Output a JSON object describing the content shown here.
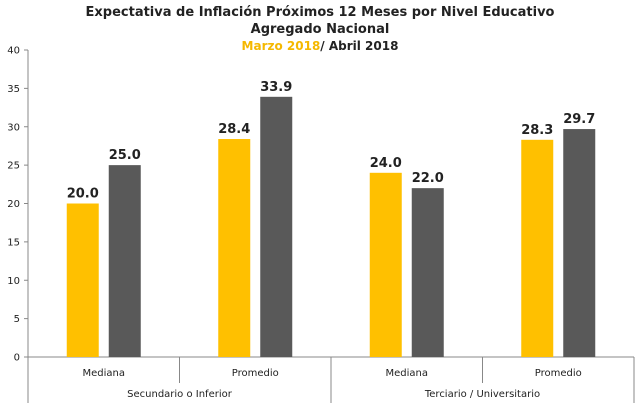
{
  "title": {
    "line1": "Expectativa de Inflación Próximos 12 Meses por Nivel Educativo",
    "line2": "Agregado Nacional",
    "period_a": "Marzo 2018",
    "period_b": "/ Abril 2018"
  },
  "colors": {
    "series_a": "#FFC000",
    "series_b": "#595959"
  },
  "chart_data": {
    "type": "bar",
    "ylim": [
      0,
      40
    ],
    "yticks": [
      0,
      5,
      10,
      15,
      20,
      25,
      30,
      35,
      40
    ],
    "grid": false,
    "groups": [
      {
        "name": "Secundario o Inferior",
        "categories": [
          {
            "label": "Mediana",
            "values": [
              20.0,
              25.0
            ],
            "labels": [
              "20.0",
              "25.0"
            ]
          },
          {
            "label": "Promedio",
            "values": [
              28.4,
              33.9
            ],
            "labels": [
              "28.4",
              "33.9"
            ]
          }
        ]
      },
      {
        "name": "Terciario / Universitario",
        "categories": [
          {
            "label": "Mediana",
            "values": [
              24.0,
              22.0
            ],
            "labels": [
              "24.0",
              "22.0"
            ]
          },
          {
            "label": "Promedio",
            "values": [
              28.3,
              29.7
            ],
            "labels": [
              "28.3",
              "29.7"
            ]
          }
        ]
      }
    ],
    "series": [
      {
        "name": "Marzo 2018"
      },
      {
        "name": "Abril 2018"
      }
    ]
  }
}
